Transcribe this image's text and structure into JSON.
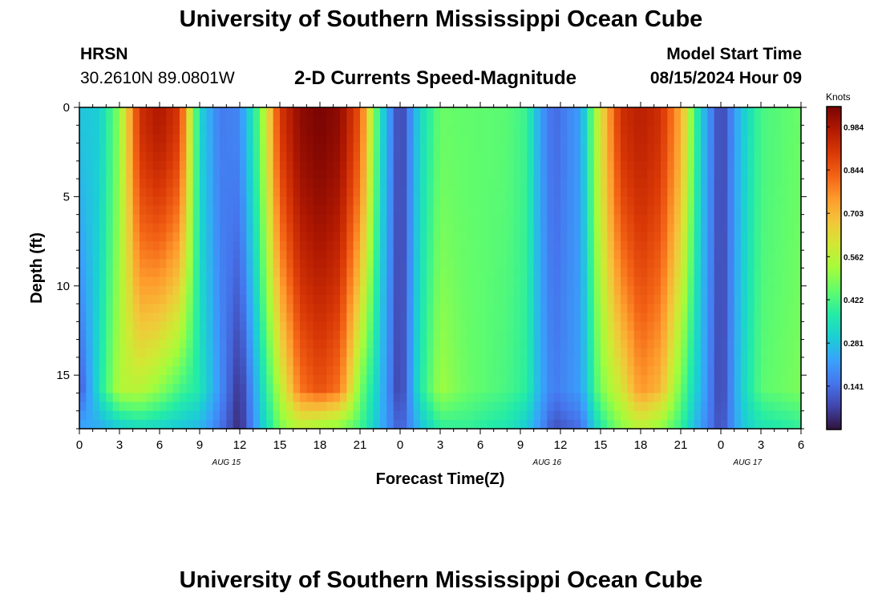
{
  "header": {
    "title": "University of Southern Mississippi Ocean Cube",
    "station": "HRSN",
    "coordinates": "30.2610N  89.0801W",
    "subtitle": "2-D Currents Speed-Magnitude",
    "start_label": "Model Start Time",
    "start_value": "08/15/2024 Hour 09"
  },
  "footer": {
    "title": "University of Southern Mississippi Ocean Cube"
  },
  "chart_data": {
    "type": "heatmap",
    "title": "2-D Currents Speed-Magnitude",
    "xlabel": "Forecast Time(Z)",
    "ylabel": "Depth (ft)",
    "x_ticks": [
      "0",
      "3",
      "6",
      "9",
      "12",
      "15",
      "18",
      "21",
      "0",
      "3",
      "6",
      "9",
      "12",
      "15",
      "18",
      "21",
      "0",
      "3",
      "6"
    ],
    "date_labels": [
      {
        "label": "AUG 15",
        "at_hour": 11
      },
      {
        "label": "AUG 16",
        "at_hour": 35
      },
      {
        "label": "AUG 17",
        "at_hour": 50
      }
    ],
    "x_range_hours": [
      0,
      54
    ],
    "y_ticks": [
      0,
      5,
      10,
      15
    ],
    "ylim": [
      0,
      18
    ],
    "y_inverted": true,
    "colorbar": {
      "label": "Knots",
      "ticks": [
        "0.984",
        "0.844",
        "0.703",
        "0.562",
        "0.422",
        "0.281",
        "0.141"
      ],
      "range": [
        0.0,
        1.05
      ],
      "colormap": [
        "#30123b",
        "#4145ab",
        "#4675ed",
        "#39a2fc",
        "#1bcfd4",
        "#24eca6",
        "#61fc6c",
        "#a4fc3b",
        "#d1e834",
        "#f3c63a",
        "#fe9b2d",
        "#f36315",
        "#d93806",
        "#b11901",
        "#7a0403"
      ]
    },
    "cells_per_hour": 2,
    "row_depths_ft": [
      0,
      0.5,
      1,
      1.5,
      2,
      2.5,
      3,
      3.5,
      4,
      4.5,
      5,
      5.5,
      6,
      6.5,
      7,
      7.5,
      8,
      8.5,
      9,
      9.5,
      10,
      10.5,
      11,
      11.5,
      12,
      12.5,
      13,
      13.5,
      14,
      14.5,
      15,
      15.5,
      16,
      16.5,
      17,
      17.5
    ],
    "column_profiles": [
      {
        "hour": 0.0,
        "surface": 0.28,
        "bottom": 0.1,
        "bottom_layer": 0.22
      },
      {
        "hour": 1.5,
        "surface": 0.3,
        "bottom": 0.35,
        "bottom_layer": 0.25
      },
      {
        "hour": 3.0,
        "surface": 0.5,
        "bottom": 0.55,
        "bottom_layer": 0.32
      },
      {
        "hour": 4.5,
        "surface": 0.92,
        "bottom": 0.56,
        "bottom_layer": 0.35
      },
      {
        "hour": 6.0,
        "surface": 0.98,
        "bottom": 0.5,
        "bottom_layer": 0.33
      },
      {
        "hour": 7.5,
        "surface": 0.9,
        "bottom": 0.42,
        "bottom_layer": 0.3
      },
      {
        "hour": 9.0,
        "surface": 0.32,
        "bottom": 0.36,
        "bottom_layer": 0.27
      },
      {
        "hour": 10.5,
        "surface": 0.16,
        "bottom": 0.2,
        "bottom_layer": 0.16
      },
      {
        "hour": 12.0,
        "surface": 0.18,
        "bottom": 0.04,
        "bottom_layer": 0.03
      },
      {
        "hour": 13.5,
        "surface": 0.45,
        "bottom": 0.3,
        "bottom_layer": 0.27
      },
      {
        "hour": 15.0,
        "surface": 0.9,
        "bottom": 0.55,
        "bottom_layer": 0.48
      },
      {
        "hour": 16.5,
        "surface": 1.02,
        "bottom": 0.8,
        "bottom_layer": 0.58
      },
      {
        "hour": 18.0,
        "surface": 1.05,
        "bottom": 0.86,
        "bottom_layer": 0.55
      },
      {
        "hour": 19.5,
        "surface": 1.02,
        "bottom": 0.8,
        "bottom_layer": 0.52
      },
      {
        "hour": 21.0,
        "surface": 0.85,
        "bottom": 0.48,
        "bottom_layer": 0.42
      },
      {
        "hour": 22.5,
        "surface": 0.35,
        "bottom": 0.28,
        "bottom_layer": 0.26
      },
      {
        "hour": 24.0,
        "surface": 0.05,
        "bottom": 0.05,
        "bottom_layer": 0.1
      },
      {
        "hour": 25.5,
        "surface": 0.32,
        "bottom": 0.36,
        "bottom_layer": 0.28
      },
      {
        "hour": 27.0,
        "surface": 0.46,
        "bottom": 0.52,
        "bottom_layer": 0.4
      },
      {
        "hour": 29.0,
        "surface": 0.45,
        "bottom": 0.46,
        "bottom_layer": 0.4
      },
      {
        "hour": 32.0,
        "surface": 0.44,
        "bottom": 0.42,
        "bottom_layer": 0.36
      },
      {
        "hour": 33.5,
        "surface": 0.4,
        "bottom": 0.38,
        "bottom_layer": 0.3
      },
      {
        "hour": 34.5,
        "surface": 0.22,
        "bottom": 0.24,
        "bottom_layer": 0.2
      },
      {
        "hour": 35.5,
        "surface": 0.13,
        "bottom": 0.16,
        "bottom_layer": 0.1
      },
      {
        "hour": 37.5,
        "surface": 0.22,
        "bottom": 0.22,
        "bottom_layer": 0.15
      },
      {
        "hour": 39.0,
        "surface": 0.62,
        "bottom": 0.48,
        "bottom_layer": 0.38
      },
      {
        "hour": 40.5,
        "surface": 0.92,
        "bottom": 0.6,
        "bottom_layer": 0.5
      },
      {
        "hour": 42.0,
        "surface": 0.96,
        "bottom": 0.76,
        "bottom_layer": 0.58
      },
      {
        "hour": 43.5,
        "surface": 0.92,
        "bottom": 0.7,
        "bottom_layer": 0.52
      },
      {
        "hour": 45.0,
        "surface": 0.72,
        "bottom": 0.46,
        "bottom_layer": 0.4
      },
      {
        "hour": 46.5,
        "surface": 0.3,
        "bottom": 0.26,
        "bottom_layer": 0.22
      },
      {
        "hour": 48.0,
        "surface": 0.06,
        "bottom": 0.06,
        "bottom_layer": 0.08
      },
      {
        "hour": 49.5,
        "surface": 0.28,
        "bottom": 0.3,
        "bottom_layer": 0.28
      },
      {
        "hour": 51.0,
        "surface": 0.42,
        "bottom": 0.44,
        "bottom_layer": 0.36
      },
      {
        "hour": 54.0,
        "surface": 0.46,
        "bottom": 0.48,
        "bottom_layer": 0.4
      }
    ]
  }
}
